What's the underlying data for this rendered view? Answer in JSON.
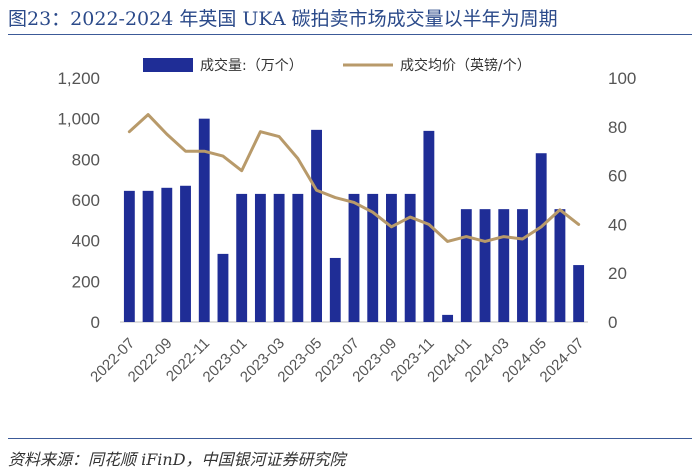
{
  "header": {
    "title": "图23：2022-2024 年英国 UKA 碳拍卖市场成交量以半年为周期",
    "source": "资料来源：同花顺 iFinD，中国银河证券研究院"
  },
  "colors": {
    "bar": "#1f2d96",
    "line": "#b89a6a",
    "rule": "#3c5a98"
  },
  "chart_data": {
    "type": "bar",
    "title": "2022-2024 年英国 UKA 碳拍卖市场成交量以半年为周期",
    "legend_position": "top-center",
    "categories": [
      "2022-07",
      "2022-08",
      "2022-09",
      "2022-10",
      "2022-11",
      "2022-12",
      "2023-01",
      "2023-02",
      "2023-03",
      "2023-04",
      "2023-05",
      "2023-06",
      "2023-07",
      "2023-08",
      "2023-09",
      "2023-10",
      "2023-11",
      "2023-12",
      "2024-01",
      "2024-02",
      "2024-03",
      "2024-04",
      "2024-05",
      "2024-06",
      "2024-07"
    ],
    "x_tick_labels": [
      "2022-07",
      "2022-09",
      "2022-11",
      "2023-01",
      "2023-03",
      "2023-05",
      "2023-07",
      "2023-09",
      "2023-11",
      "2024-01",
      "2024-03",
      "2024-05",
      "2024-07"
    ],
    "series": [
      {
        "name": "成交量:（万个）",
        "type": "bar",
        "axis": "left",
        "values": [
          645,
          645,
          660,
          670,
          1000,
          335,
          630,
          630,
          630,
          630,
          945,
          315,
          630,
          630,
          630,
          630,
          940,
          35,
          555,
          555,
          555,
          555,
          830,
          555,
          280
        ]
      },
      {
        "name": "成交均价（英镑/个）",
        "type": "line",
        "axis": "right",
        "values": [
          78,
          85,
          77,
          70,
          70,
          68,
          62,
          78,
          76,
          67,
          54,
          51,
          49,
          45,
          39,
          43,
          40,
          33,
          35,
          33,
          35,
          34,
          39,
          46,
          40
        ]
      }
    ],
    "ylim_left": [
      0,
      1200
    ],
    "yticks_left": [
      "0",
      "200",
      "400",
      "600",
      "800",
      "1,000",
      "1,200"
    ],
    "ylim_right": [
      0,
      100
    ],
    "yticks_right": [
      "0",
      "20",
      "40",
      "60",
      "80",
      "100"
    ],
    "grid": false
  }
}
